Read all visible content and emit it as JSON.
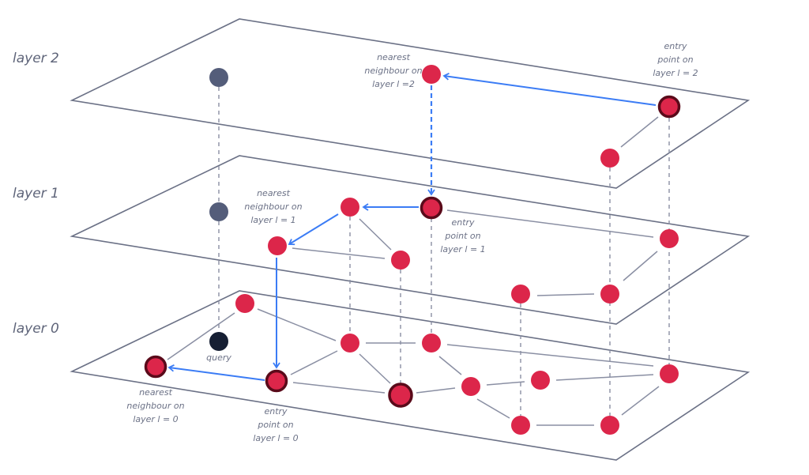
{
  "layers": [
    {
      "name": "layer 2"
    },
    {
      "name": "layer 1"
    },
    {
      "name": "layer 0"
    }
  ],
  "labels": {
    "nearest_l2": [
      "nearest",
      "neighbour on",
      "layer l =2"
    ],
    "entry_l2": [
      "entry",
      "point on",
      "layer l = 2"
    ],
    "nearest_l1": [
      "nearest",
      "neighbour on",
      "layer l = 1"
    ],
    "entry_l1": [
      "entry",
      "point on",
      "layer l = 1"
    ],
    "nearest_l0": [
      "nearest",
      "neighbour on",
      "layer l = 0"
    ],
    "entry_l0": [
      "entry",
      "point on",
      "layer l = 0"
    ],
    "query": "query"
  },
  "colors": {
    "node": "#dc264a",
    "node_ring": "#5a0a1a",
    "query_projection": "#545d7a",
    "query": "#161f33",
    "search_path": "#3b7cf5",
    "plane": "#6b7186"
  }
}
